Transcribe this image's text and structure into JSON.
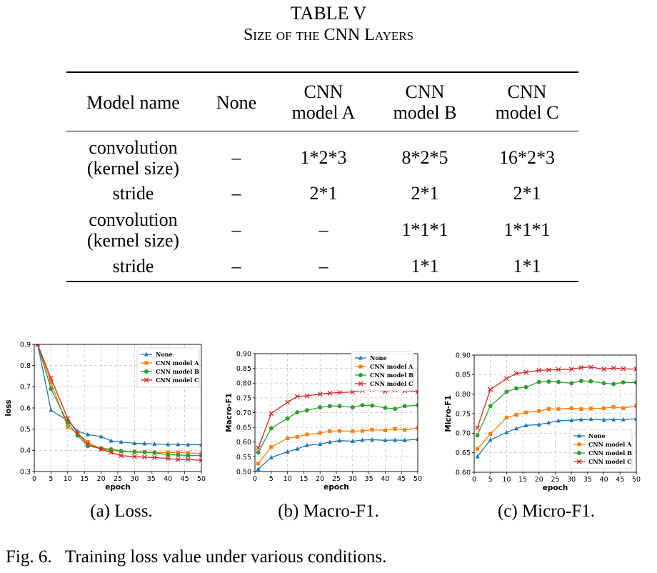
{
  "table": {
    "title": "TABLE V",
    "subtitle_words": [
      "Size of the",
      "CNN",
      "Layers"
    ],
    "headers": [
      {
        "line1": "Model name",
        "line2": ""
      },
      {
        "line1": "None",
        "line2": ""
      },
      {
        "line1": "CNN",
        "line2": "model A"
      },
      {
        "line1": "CNN",
        "line2": "model B"
      },
      {
        "line1": "CNN",
        "line2": "model C"
      }
    ],
    "rows": [
      {
        "label_line1": "convolution",
        "label_line2": "(kernel size)",
        "cells": [
          "–",
          "1*2*3",
          "8*2*5",
          "16*2*3"
        ]
      },
      {
        "label_line1": "stride",
        "label_line2": "",
        "cells": [
          "–",
          "2*1",
          "2*1",
          "2*1"
        ]
      },
      {
        "label_line1": "convolution",
        "label_line2": "(kernel size)",
        "cells": [
          "–",
          "–",
          "1*1*1",
          "1*1*1"
        ]
      },
      {
        "label_line1": "stride",
        "label_line2": "",
        "cells": [
          "–",
          "–",
          "1*1",
          "1*1"
        ]
      }
    ]
  },
  "figure": {
    "caption_label": "Fig. 6.",
    "caption_text": "Training loss value under various conditions."
  },
  "chart_data": [
    {
      "type": "line",
      "caption": "(a) Loss.",
      "xlabel": "epoch",
      "ylabel": "loss",
      "xlim": [
        0,
        50
      ],
      "ylim": [
        0.3,
        0.9
      ],
      "xticks": [
        0,
        5,
        10,
        15,
        20,
        25,
        30,
        35,
        40,
        45,
        50
      ],
      "yticks": [
        0.3,
        0.4,
        0.5,
        0.6,
        0.7,
        0.8,
        0.9
      ],
      "ytick_labels": [
        "0.3",
        "0.4",
        "0.5",
        "0.6",
        "0.7",
        "0.8",
        "0.9"
      ],
      "grid": true,
      "legend": "top-right",
      "x": [
        1,
        5,
        10,
        13,
        16,
        20,
        23,
        26,
        30,
        33,
        36,
        40,
        43,
        46,
        50
      ],
      "series": [
        {
          "name": "None",
          "color": "#1f77b4",
          "marker": "triangle",
          "values": [
            0.9,
            0.59,
            0.54,
            0.49,
            0.475,
            0.465,
            0.445,
            0.44,
            0.433,
            0.432,
            0.43,
            0.428,
            0.428,
            0.427,
            0.427
          ]
        },
        {
          "name": "CNN model A",
          "color": "#ff7f0e",
          "marker": "square",
          "values": [
            0.9,
            0.72,
            0.51,
            0.48,
            0.44,
            0.405,
            0.4,
            0.395,
            0.395,
            0.392,
            0.39,
            0.39,
            0.39,
            0.388,
            0.385
          ]
        },
        {
          "name": "CNN model B",
          "color": "#2ca02c",
          "marker": "circle",
          "values": [
            0.9,
            0.69,
            0.53,
            0.47,
            0.42,
            0.41,
            0.405,
            0.397,
            0.392,
            0.39,
            0.388,
            0.38,
            0.378,
            0.376,
            0.375
          ]
        },
        {
          "name": "CNN model C",
          "color": "#d62728",
          "marker": "x",
          "values": [
            0.9,
            0.74,
            0.55,
            0.48,
            0.43,
            0.405,
            0.39,
            0.375,
            0.37,
            0.368,
            0.366,
            0.362,
            0.357,
            0.357,
            0.353
          ]
        }
      ]
    },
    {
      "type": "line",
      "caption": "(b) Macro-F1.",
      "xlabel": "epoch",
      "ylabel": "Macro-F1",
      "xlim": [
        0,
        50
      ],
      "ylim": [
        0.5,
        0.9
      ],
      "xticks": [
        0,
        5,
        10,
        15,
        20,
        25,
        30,
        35,
        40,
        45,
        50
      ],
      "yticks": [
        0.5,
        0.55,
        0.6,
        0.65,
        0.7,
        0.75,
        0.8,
        0.85,
        0.9
      ],
      "ytick_labels": [
        "0.50",
        "0.55",
        "0.60",
        "0.65",
        "0.70",
        "0.75",
        "0.80",
        "0.85",
        "0.90"
      ],
      "grid": true,
      "legend": "top-right",
      "x": [
        1,
        5,
        10,
        13,
        16,
        20,
        23,
        26,
        30,
        33,
        36,
        40,
        43,
        46,
        50
      ],
      "series": [
        {
          "name": "None",
          "color": "#1f77b4",
          "marker": "triangle",
          "values": [
            0.508,
            0.548,
            0.567,
            0.577,
            0.589,
            0.593,
            0.6,
            0.605,
            0.603,
            0.607,
            0.608,
            0.606,
            0.607,
            0.606,
            0.61
          ]
        },
        {
          "name": "CNN model A",
          "color": "#ff7f0e",
          "marker": "square",
          "values": [
            0.527,
            0.583,
            0.613,
            0.618,
            0.626,
            0.631,
            0.637,
            0.638,
            0.637,
            0.638,
            0.642,
            0.64,
            0.645,
            0.641,
            0.648
          ]
        },
        {
          "name": "CNN model B",
          "color": "#2ca02c",
          "marker": "circle",
          "values": [
            0.565,
            0.647,
            0.68,
            0.701,
            0.708,
            0.718,
            0.722,
            0.722,
            0.718,
            0.725,
            0.724,
            0.716,
            0.713,
            0.722,
            0.725
          ]
        },
        {
          "name": "CNN model C",
          "color": "#d62728",
          "marker": "x",
          "values": [
            0.58,
            0.697,
            0.735,
            0.755,
            0.757,
            0.763,
            0.766,
            0.768,
            0.77,
            0.775,
            0.778,
            0.772,
            0.776,
            0.774,
            0.77
          ]
        }
      ]
    },
    {
      "type": "line",
      "caption": "(c) Micro-F1.",
      "xlabel": "epoch",
      "ylabel": "Micro-F1",
      "xlim": [
        0,
        50
      ],
      "ylim": [
        0.6,
        0.9
      ],
      "xticks": [
        0,
        5,
        10,
        15,
        20,
        25,
        30,
        35,
        40,
        45,
        50
      ],
      "yticks": [
        0.6,
        0.65,
        0.7,
        0.75,
        0.8,
        0.85,
        0.9
      ],
      "ytick_labels": [
        "0.60",
        "0.65",
        "0.70",
        "0.75",
        "0.80",
        "0.85",
        "0.90"
      ],
      "grid": true,
      "legend": "bottom-right",
      "x": [
        1,
        5,
        10,
        13,
        16,
        20,
        23,
        26,
        30,
        33,
        36,
        40,
        43,
        46,
        50
      ],
      "series": [
        {
          "name": "None",
          "color": "#1f77b4",
          "marker": "triangle",
          "values": [
            0.64,
            0.683,
            0.702,
            0.712,
            0.72,
            0.722,
            0.727,
            0.732,
            0.733,
            0.735,
            0.736,
            0.734,
            0.735,
            0.735,
            0.737
          ]
        },
        {
          "name": "CNN model A",
          "color": "#ff7f0e",
          "marker": "square",
          "values": [
            0.66,
            0.698,
            0.74,
            0.747,
            0.753,
            0.757,
            0.762,
            0.762,
            0.764,
            0.762,
            0.763,
            0.764,
            0.767,
            0.764,
            0.77
          ]
        },
        {
          "name": "CNN model B",
          "color": "#2ca02c",
          "marker": "circle",
          "values": [
            0.695,
            0.77,
            0.806,
            0.815,
            0.818,
            0.831,
            0.832,
            0.831,
            0.828,
            0.834,
            0.833,
            0.828,
            0.826,
            0.83,
            0.83
          ]
        },
        {
          "name": "CNN model C",
          "color": "#d62728",
          "marker": "x",
          "values": [
            0.714,
            0.812,
            0.84,
            0.853,
            0.856,
            0.861,
            0.862,
            0.863,
            0.864,
            0.868,
            0.869,
            0.864,
            0.867,
            0.865,
            0.864
          ]
        }
      ]
    }
  ]
}
